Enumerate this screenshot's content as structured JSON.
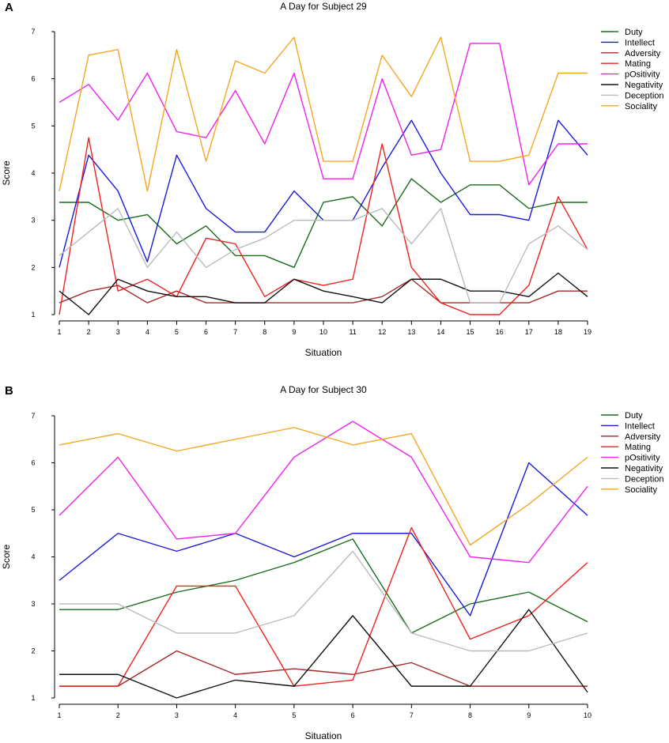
{
  "chart_data": [
    {
      "type": "line",
      "panel_label": "A",
      "title": "A Day for Subject 29",
      "xlabel": "Situation",
      "ylabel": "Score",
      "xlim": [
        1,
        19
      ],
      "ylim": [
        1,
        7
      ],
      "x": [
        1,
        2,
        3,
        4,
        5,
        6,
        7,
        8,
        9,
        10,
        11,
        12,
        13,
        14,
        15,
        16,
        17,
        18,
        19
      ],
      "xticks": [
        "1",
        "2",
        "3",
        "4",
        "5",
        "6",
        "7",
        "8",
        "9",
        "10",
        "11",
        "12",
        "13",
        "14",
        "15",
        "16",
        "17",
        "18",
        "19"
      ],
      "yticks": [
        "1",
        "2",
        "3",
        "4",
        "5",
        "6",
        "7"
      ],
      "legend_position": "top-right",
      "series": [
        {
          "name": "Duty",
          "color": "#1a6b1a",
          "values": [
            3.38,
            3.38,
            3.0,
            3.12,
            2.5,
            2.88,
            2.25,
            2.25,
            2.0,
            3.38,
            3.5,
            2.88,
            3.88,
            3.38,
            3.75,
            3.75,
            3.25,
            3.38,
            3.38
          ]
        },
        {
          "name": "Intellect",
          "color": "#1a1adb",
          "values": [
            2.0,
            4.38,
            3.62,
            2.12,
            4.38,
            3.25,
            2.75,
            2.75,
            3.62,
            3.0,
            3.0,
            4.12,
            5.12,
            4.0,
            3.12,
            3.12,
            3.0,
            5.12,
            4.38
          ]
        },
        {
          "name": "Adversity",
          "color": "#a52a2a",
          "values": [
            1.25,
            1.5,
            1.62,
            1.25,
            1.5,
            1.25,
            1.25,
            1.25,
            1.25,
            1.25,
            1.25,
            1.38,
            1.75,
            1.25,
            1.25,
            1.25,
            1.25,
            1.5,
            1.5
          ]
        },
        {
          "name": "Mating",
          "color": "#ee2222",
          "values": [
            1.0,
            4.75,
            1.5,
            1.75,
            1.38,
            2.62,
            2.5,
            1.38,
            1.75,
            1.62,
            1.75,
            4.62,
            2.0,
            1.25,
            1.0,
            1.0,
            1.62,
            3.5,
            2.38
          ]
        },
        {
          "name": "pOsitivity",
          "color": "#ee22ee",
          "values": [
            5.5,
            5.88,
            5.12,
            6.12,
            4.88,
            4.75,
            5.75,
            4.62,
            6.12,
            3.88,
            3.88,
            6.0,
            4.38,
            4.5,
            6.75,
            6.75,
            3.75,
            4.62,
            4.62
          ]
        },
        {
          "name": "Negativity",
          "color": "#111111",
          "values": [
            1.5,
            1.0,
            1.75,
            1.5,
            1.38,
            1.38,
            1.25,
            1.25,
            1.75,
            1.5,
            1.38,
            1.25,
            1.75,
            1.75,
            1.5,
            1.5,
            1.38,
            1.88,
            1.38
          ]
        },
        {
          "name": "Deception",
          "color": "#bbbbbb",
          "values": [
            2.25,
            2.75,
            3.25,
            2.0,
            2.75,
            2.0,
            2.38,
            2.62,
            3.0,
            3.0,
            3.0,
            3.25,
            2.5,
            3.25,
            1.25,
            1.25,
            2.5,
            2.88,
            2.38
          ]
        },
        {
          "name": "Sociality",
          "color": "#f5a623",
          "values": [
            3.62,
            6.5,
            6.62,
            3.62,
            6.62,
            4.25,
            6.38,
            6.12,
            6.88,
            4.25,
            4.25,
            6.5,
            5.62,
            6.88,
            4.25,
            4.25,
            4.38,
            6.12,
            6.12
          ]
        }
      ]
    },
    {
      "type": "line",
      "panel_label": "B",
      "title": "A Day for Subject 30",
      "xlabel": "Situation",
      "ylabel": "Score",
      "xlim": [
        1,
        10
      ],
      "ylim": [
        1,
        7
      ],
      "x": [
        1,
        2,
        3,
        4,
        5,
        6,
        7,
        8,
        9,
        10
      ],
      "xticks": [
        "1",
        "2",
        "3",
        "4",
        "5",
        "6",
        "7",
        "8",
        "9",
        "10"
      ],
      "yticks": [
        "1",
        "2",
        "3",
        "4",
        "5",
        "6",
        "7"
      ],
      "legend_position": "top-right",
      "series": [
        {
          "name": "Duty",
          "color": "#1a6b1a",
          "values": [
            2.88,
            2.88,
            3.25,
            3.5,
            3.88,
            4.38,
            2.38,
            3.0,
            3.25,
            2.62
          ]
        },
        {
          "name": "Intellect",
          "color": "#1a1adb",
          "values": [
            3.5,
            4.5,
            4.12,
            4.5,
            4.0,
            4.5,
            4.5,
            2.75,
            6.0,
            4.88
          ]
        },
        {
          "name": "Adversity",
          "color": "#a52a2a",
          "values": [
            1.25,
            1.25,
            2.0,
            1.5,
            1.62,
            1.5,
            1.75,
            1.25,
            1.25,
            1.25
          ]
        },
        {
          "name": "Mating",
          "color": "#ee2222",
          "values": [
            1.25,
            1.25,
            3.38,
            3.38,
            1.25,
            1.38,
            4.62,
            2.25,
            2.75,
            3.88
          ]
        },
        {
          "name": "pOsitivity",
          "color": "#ee22ee",
          "values": [
            4.88,
            6.12,
            4.38,
            4.5,
            6.12,
            6.88,
            6.12,
            4.0,
            3.88,
            5.5
          ]
        },
        {
          "name": "Negativity",
          "color": "#111111",
          "values": [
            1.5,
            1.5,
            1.0,
            1.38,
            1.25,
            2.75,
            1.25,
            1.25,
            2.88,
            1.12
          ]
        },
        {
          "name": "Deception",
          "color": "#bbbbbb",
          "values": [
            3.0,
            3.0,
            2.38,
            2.38,
            2.75,
            4.12,
            2.38,
            2.0,
            2.0,
            2.38
          ]
        },
        {
          "name": "Sociality",
          "color": "#f5a623",
          "values": [
            6.38,
            6.62,
            6.25,
            6.5,
            6.75,
            6.38,
            6.62,
            4.25,
            5.12,
            6.12
          ]
        }
      ]
    }
  ]
}
